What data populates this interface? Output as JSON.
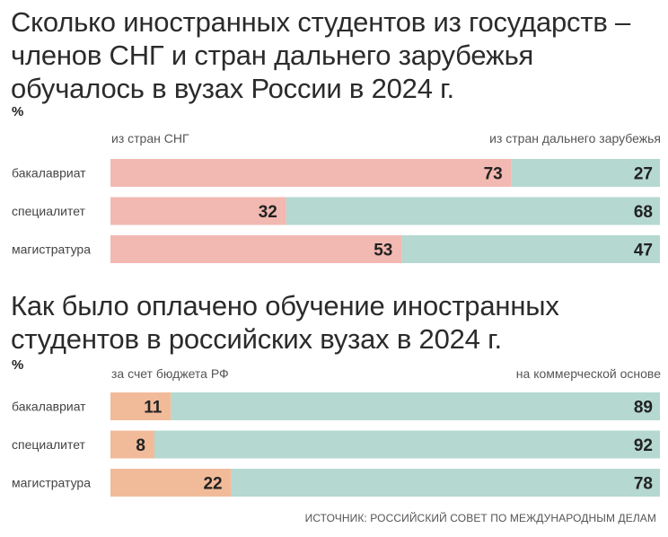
{
  "source": "ИСТОЧНИК: РОССИЙСКИЙ СОВЕТ ПО МЕЖДУНАРОДНЫМ ДЕЛАМ",
  "chart_data": [
    {
      "type": "bar",
      "stacked": true,
      "orientation": "horizontal",
      "normalized_100": true,
      "title": "Сколько иностранных студентов из государств – членов СНГ и стран дальнего зарубежья обучалось в вузах России в 2024 г.",
      "unit": "%",
      "categories": [
        "бакалавриат",
        "специалитет",
        "магистратура"
      ],
      "series": [
        {
          "name": "из стран СНГ",
          "values": [
            73,
            32,
            53
          ],
          "color": "#f1b9b1"
        },
        {
          "name": "из стран дальнего зарубежья",
          "values": [
            27,
            68,
            47
          ],
          "color": "#b5d8d0"
        }
      ],
      "xlim": [
        0,
        100
      ]
    },
    {
      "type": "bar",
      "stacked": true,
      "orientation": "horizontal",
      "normalized_100": true,
      "title": "Как было оплачено обучение иностранных студентов в российских вузах в 2024 г.",
      "unit": "%",
      "categories": [
        "бакалавриат",
        "специалитет",
        "магистратура"
      ],
      "series": [
        {
          "name": "за счет бюджета РФ",
          "values": [
            11,
            8,
            22
          ],
          "color": "#f1bb9a"
        },
        {
          "name": "на коммерческой основе",
          "values": [
            89,
            92,
            78
          ],
          "color": "#b5d8d0"
        }
      ],
      "xlim": [
        0,
        100
      ]
    }
  ]
}
